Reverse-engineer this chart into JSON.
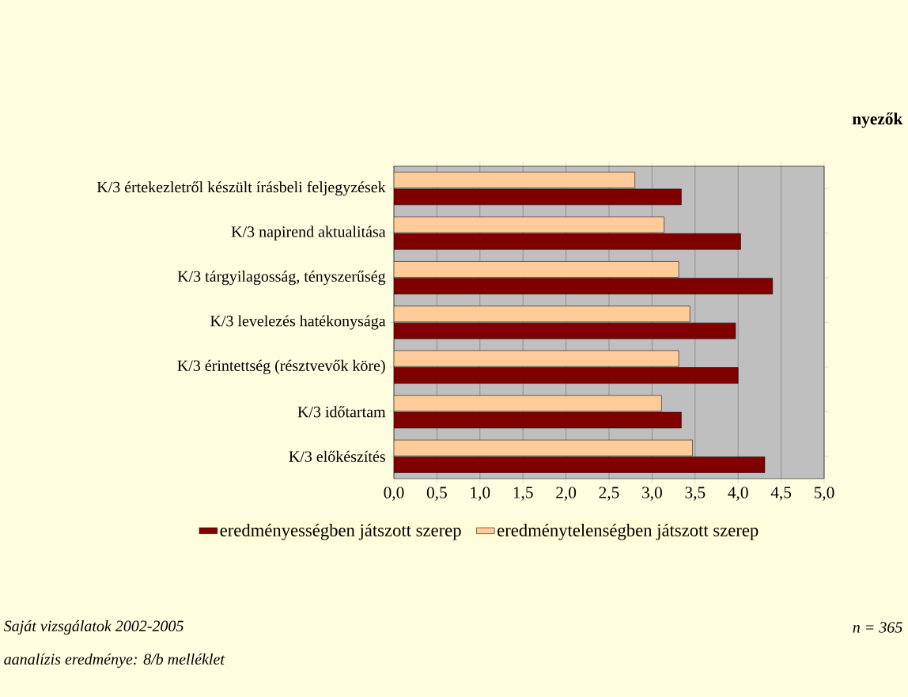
{
  "chart_data": {
    "type": "bar",
    "orientation": "horizontal",
    "title": "nyezők",
    "categories": [
      "K/3 értekezletről készült írásbeli feljegyzések",
      "K/3 napirend aktualitása",
      "K/3 tárgyilagosság, tényszerűség",
      "K/3 levelezés hatékonysága",
      "K/3 érintettség (résztvevők köre)",
      "K/3 időtartam",
      "K/3 előkészítés"
    ],
    "series": [
      {
        "name": "eredményességben játszott szerep",
        "color": "#800000",
        "values": [
          3.34,
          4.03,
          4.4,
          3.97,
          4.0,
          3.34,
          4.31
        ]
      },
      {
        "name": "eredménytelenségben játszott szerep",
        "color": "#ffcc99",
        "values": [
          2.8,
          3.14,
          3.31,
          3.44,
          3.31,
          3.11,
          3.47
        ]
      }
    ],
    "xlim": [
      0,
      5
    ],
    "xticks": [
      {
        "value": 0,
        "label": "0,0"
      },
      {
        "value": 0.5,
        "label": "0,5"
      },
      {
        "value": 1,
        "label": "1,0"
      },
      {
        "value": 1.5,
        "label": "1,5"
      },
      {
        "value": 2,
        "label": "2,0"
      },
      {
        "value": 2.5,
        "label": "2,5"
      },
      {
        "value": 3,
        "label": "3,0"
      },
      {
        "value": 3.5,
        "label": "3,5"
      },
      {
        "value": 4,
        "label": "4,0"
      },
      {
        "value": 4.5,
        "label": "4,5"
      },
      {
        "value": 5,
        "label": "5,0"
      }
    ],
    "grid": "x",
    "legend": "bottom",
    "annotations": [
      "Saját vizsgálatok 2002-2005",
      "aanalízis eredménye: 8/b melléklet",
      "n = 365"
    ]
  }
}
